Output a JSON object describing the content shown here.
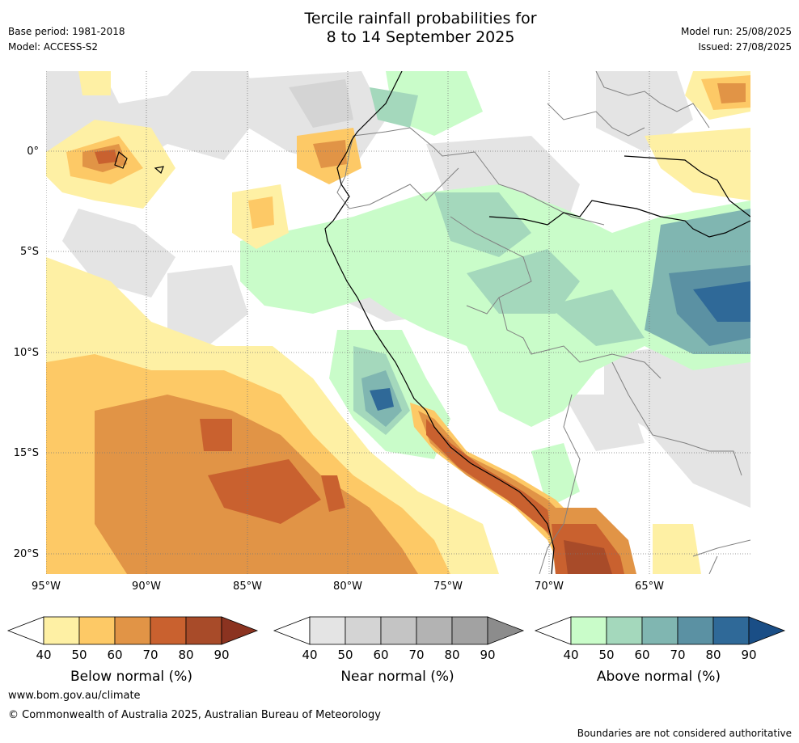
{
  "header": {
    "base_period": "Base period: 1981-2018",
    "model": "Model: ACCESS-S2",
    "title_line1": "Tercile rainfall probabilities for",
    "title_line2": "8 to 14 September 2025",
    "model_run": "Model run: 25/08/2025",
    "issued": "Issued: 27/08/2025"
  },
  "map": {
    "latitude_labels": [
      "0°",
      "5°S",
      "10°S",
      "15°S",
      "20°S"
    ],
    "longitude_labels": [
      "95°W",
      "90°W",
      "85°W",
      "80°W",
      "75°W",
      "70°W",
      "65°W"
    ]
  },
  "legend": {
    "below": {
      "caption": "Below normal (%)",
      "ticks": [
        "40",
        "50",
        "60",
        "70",
        "80",
        "90"
      ],
      "colors": [
        "#fef0a4",
        "#fdc966",
        "#e19446",
        "#c9612f",
        "#a84b29",
        "#8b3320"
      ]
    },
    "near": {
      "caption": "Near normal (%)",
      "ticks": [
        "40",
        "50",
        "60",
        "70",
        "80",
        "90"
      ],
      "colors": [
        "#e4e4e4",
        "#d4d4d4",
        "#c4c4c4",
        "#b3b3b3",
        "#a2a2a2",
        "#8c8c8c"
      ]
    },
    "above": {
      "caption": "Above normal (%)",
      "ticks": [
        "40",
        "50",
        "60",
        "70",
        "80",
        "90"
      ],
      "colors": [
        "#c9fcc9",
        "#a4d8bc",
        "#80b6b1",
        "#5b91a3",
        "#2f6998",
        "#1a4e86"
      ]
    }
  },
  "footer": {
    "website": "www.bom.gov.au/climate",
    "copyright": "© Commonwealth of Australia 2025, Australian Bureau of Meteorology",
    "disclaimer": "Boundaries are not considered authoritative"
  }
}
